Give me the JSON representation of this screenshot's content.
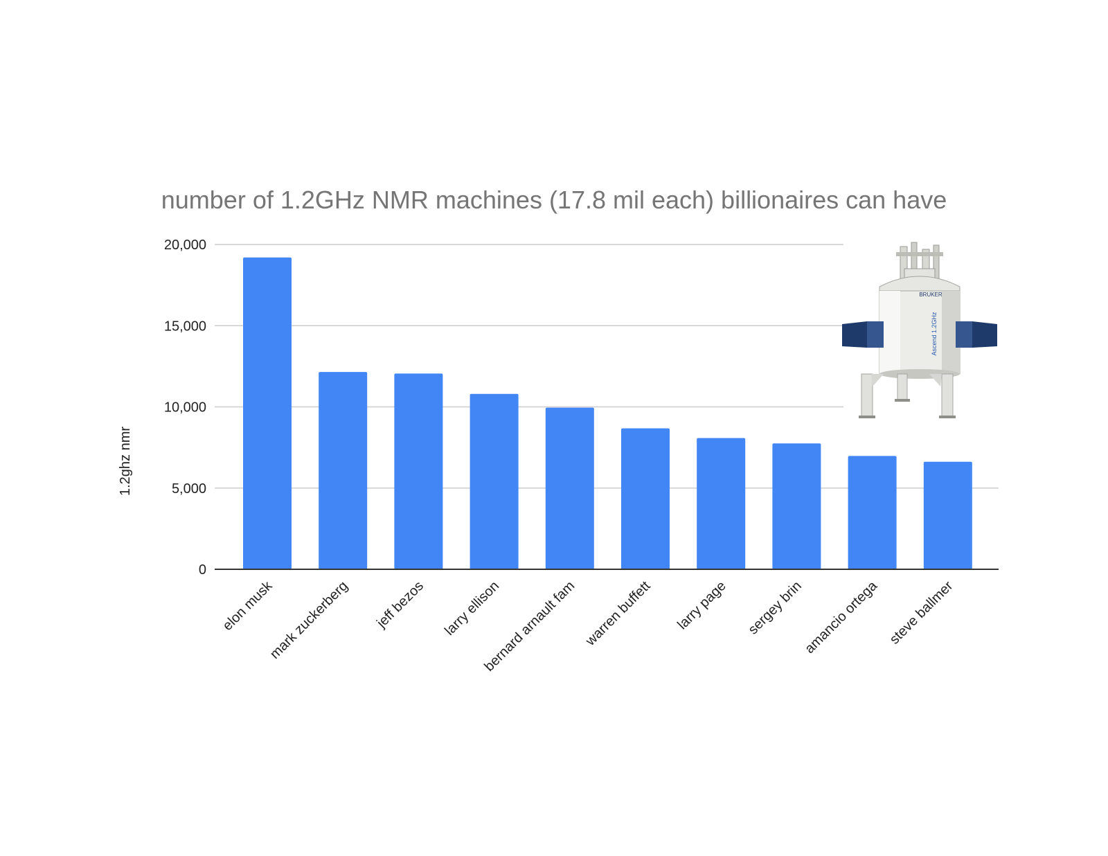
{
  "chart_data": {
    "type": "bar",
    "title": "number of 1.2GHz NMR machines (17.8 mil each) billionaires can have",
    "xlabel": "",
    "ylabel": "1.2ghz nmr",
    "ylim": [
      0,
      20000
    ],
    "yticks": [
      0,
      5000,
      10000,
      15000,
      20000
    ],
    "ytick_labels": [
      "0",
      "5,000",
      "10,000",
      "15,000",
      "20,000"
    ],
    "categories": [
      "elon musk",
      "mark zuckerberg",
      "jeff bezos",
      "larry ellison",
      "bernard arnault fam",
      "warren buffett",
      "larry page",
      "sergey brin",
      "amancio ortega",
      "steve ballmer"
    ],
    "values": [
      19200,
      12150,
      12050,
      10800,
      9950,
      8680,
      8080,
      7750,
      6980,
      6620
    ],
    "grid": true,
    "bar_color": "#4285f4",
    "inset_image": "nmr-magnet"
  },
  "inset_image_label": "Ascend 1.2GHz",
  "inset_image_brand": "BRUKER"
}
